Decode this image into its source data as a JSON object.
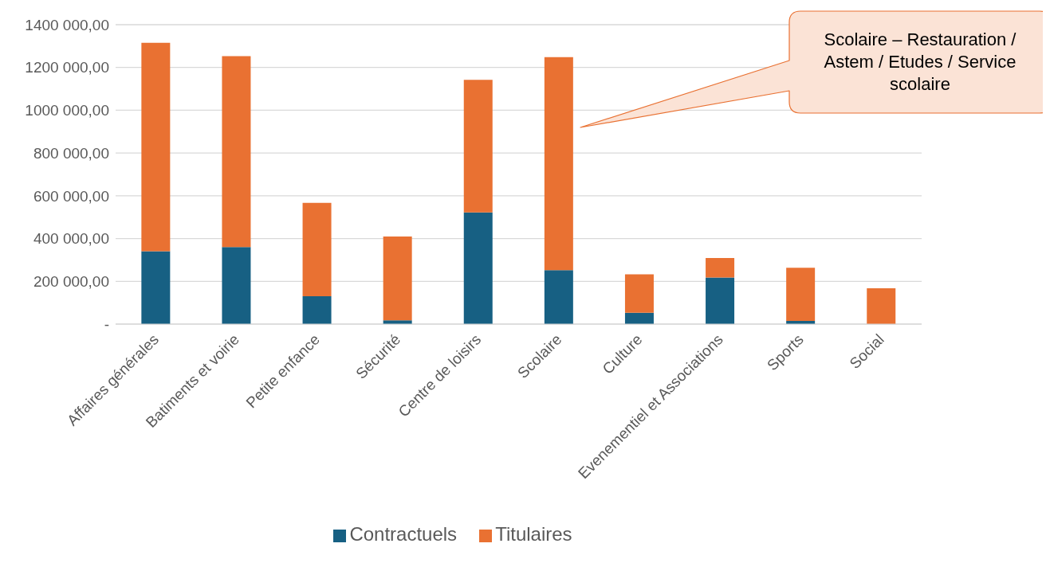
{
  "chart_data": {
    "type": "bar",
    "stacked": true,
    "categories": [
      "Affaires générales",
      "Batiments et voirie",
      "Petite enfance",
      "Sécurité",
      "Centre de loisirs",
      "Scolaire",
      "Culture",
      "Evenementiel et Associations",
      "Sports",
      "Social"
    ],
    "series": [
      {
        "name": "Contractuels",
        "color": "#176083",
        "values": [
          341000,
          360000,
          130000,
          18000,
          522000,
          252000,
          53000,
          218000,
          15000,
          0
        ]
      },
      {
        "name": "Titulaires",
        "color": "#e97132",
        "values": [
          974000,
          893000,
          437000,
          392000,
          620000,
          996000,
          180000,
          91000,
          248000,
          168000
        ]
      }
    ],
    "ylim": [
      0,
      1400000
    ],
    "yticks": [
      {
        "value": 0,
        "label": "-"
      },
      {
        "value": 200000,
        "label": "200 000,00"
      },
      {
        "value": 400000,
        "label": "400 000,00"
      },
      {
        "value": 600000,
        "label": "600 000,00"
      },
      {
        "value": 800000,
        "label": "800 000,00"
      },
      {
        "value": 1000000,
        "label": "1000 000,00"
      },
      {
        "value": 1200000,
        "label": "1200 000,00"
      },
      {
        "value": 1400000,
        "label": "1400 000,00"
      }
    ],
    "grid": "y",
    "legend": "bottom",
    "annotations": [
      "Scolaire – Restauration / Astem / Etudes / Service scolaire"
    ]
  }
}
